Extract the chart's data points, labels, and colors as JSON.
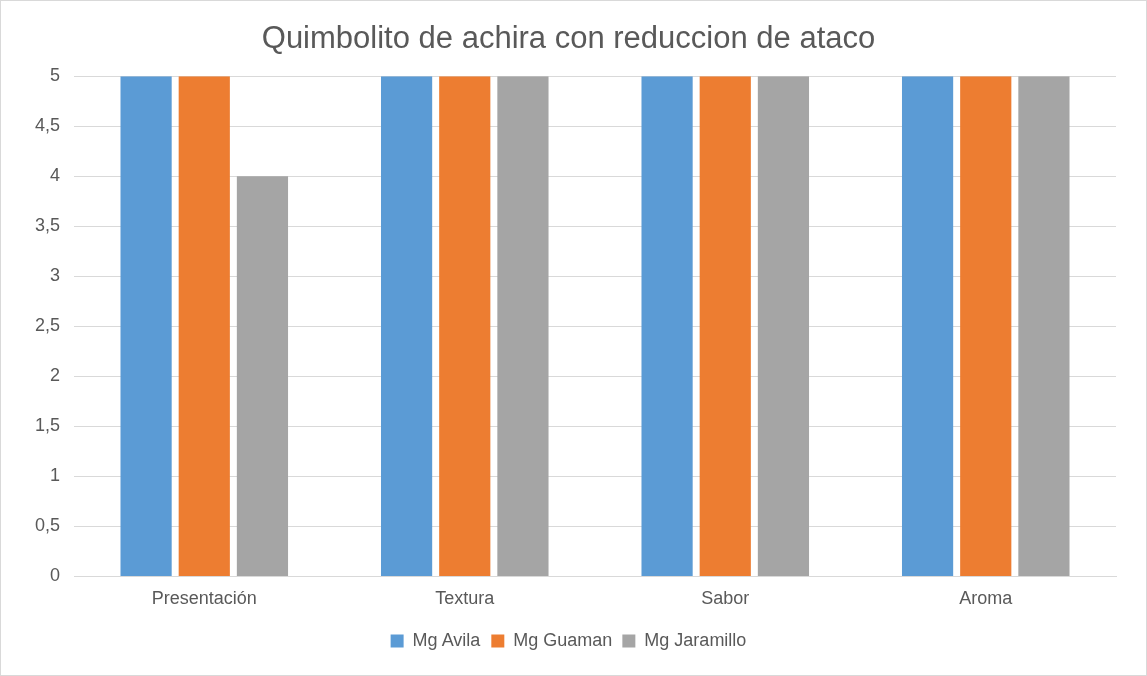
{
  "chart_data": {
    "type": "bar",
    "title": "Quimbolito de achira con reduccion de ataco",
    "categories": [
      "Presentación",
      "Textura",
      "Sabor",
      "Aroma"
    ],
    "series": [
      {
        "name": "Mg Avila",
        "color": "#5b9bd5",
        "values": [
          5,
          5,
          5,
          5
        ]
      },
      {
        "name": "Mg Guaman",
        "color": "#ed7d31",
        "values": [
          5,
          5,
          5,
          5
        ]
      },
      {
        "name": "Mg Jaramillo",
        "color": "#a5a5a5",
        "values": [
          4,
          5,
          5,
          5
        ]
      }
    ],
    "ylim": [
      0,
      5
    ],
    "yticks": [
      0,
      {
        "value": 0.5,
        "label": "0,5"
      },
      1,
      {
        "value": 1.5,
        "label": "1,5"
      },
      2,
      {
        "value": 2.5,
        "label": "2,5"
      },
      3,
      {
        "value": 3.5,
        "label": "3,5"
      },
      4,
      {
        "value": 4.5,
        "label": "4,5"
      },
      5
    ],
    "grid": "y",
    "legend": "bottom"
  }
}
